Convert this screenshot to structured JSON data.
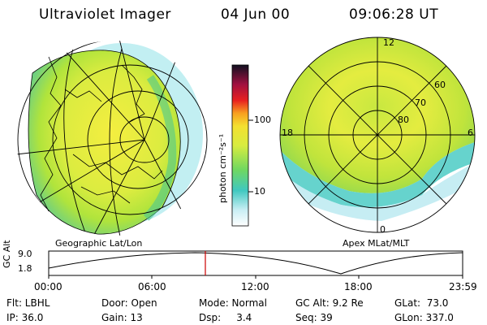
{
  "header": {
    "instrument": "Ultraviolet Imager",
    "date": "04 Jun 00",
    "time": "09:06:28 UT"
  },
  "colorbar": {
    "unit_label": "photon cm⁻²s⁻¹",
    "ticks": [
      "100",
      "10"
    ]
  },
  "left_map": {
    "caption": "Geographic Lat/Lon"
  },
  "right_map": {
    "caption": "Apex MLat/MLT",
    "mlt_labels": {
      "top": "12",
      "left": "18",
      "right": "6",
      "bottom": "0"
    },
    "lat_labels": [
      "60",
      "70",
      "80"
    ]
  },
  "altitude_plot": {
    "ylabel": "GC Alt",
    "yticks": [
      "9.0",
      "1.8"
    ],
    "xticks": [
      "00:00",
      "06:00",
      "12:00",
      "18:00",
      "23:59"
    ],
    "marker_color": "#cc0000"
  },
  "info": {
    "row1": [
      {
        "label": "Flt: LBHL"
      },
      {
        "label": "Door: Open"
      },
      {
        "label": "Mode: Normal"
      },
      {
        "label": "GC Alt: 9.2 Re"
      },
      {
        "label": "GLat:  73.0"
      }
    ],
    "row2": [
      {
        "label": "IP: 36.0"
      },
      {
        "label": "Gain: 13"
      },
      {
        "label": "Dsp:     3.4"
      },
      {
        "label": "Seq: 39"
      },
      {
        "label": "GLon: 337.0"
      }
    ]
  },
  "colors": {
    "aurora_bright": "#e8ee40",
    "aurora_mid": "#a8e63a",
    "aurora_low": "#40c8b0",
    "aurora_faint": "#9fe0e8"
  }
}
